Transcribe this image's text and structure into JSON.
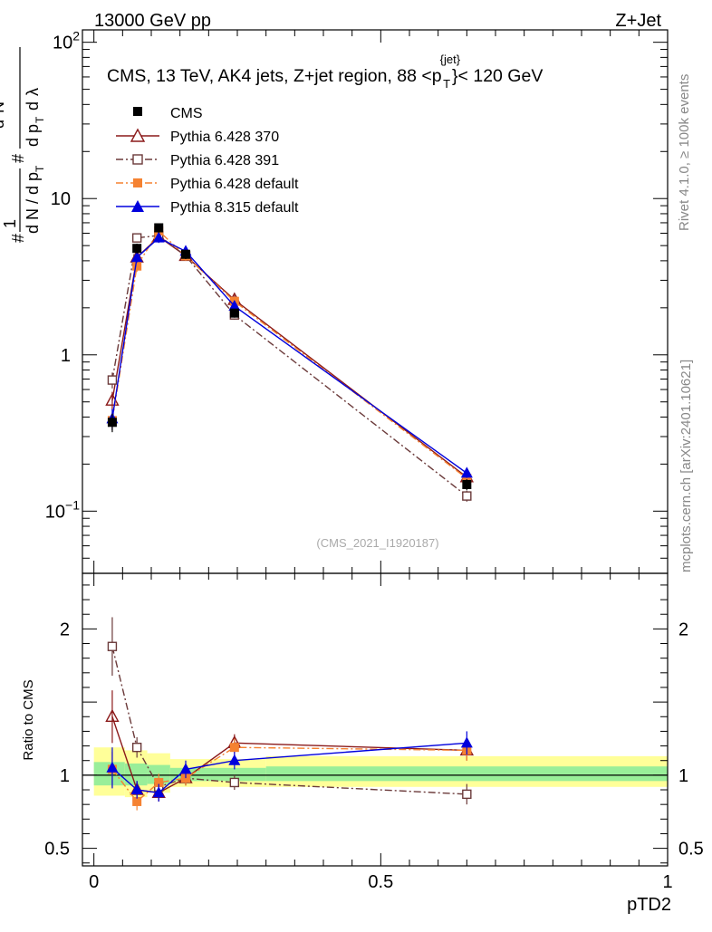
{
  "header": {
    "left": "13000 GeV pp",
    "right": "Z+Jet"
  },
  "side_text": {
    "rivet": "Rivet 4.1.0, ≥ 100k events",
    "mcplots": "mcplots.cern.ch [arXiv:2401.10621]"
  },
  "main_title": {
    "prefix": "CMS, 13 TeV, AK4 jets, Z+jet region, 88 <p",
    "sup": "{jet}",
    "sub": "T",
    "suffix": "}< 120 GeV"
  },
  "analysis_id": "(CMS_2021_I1920187)",
  "chart_data": [
    {
      "type": "line",
      "panel": "main",
      "yscale": "log",
      "ylim": [
        0.04,
        120
      ],
      "xlim": [
        -0.02,
        1.0
      ],
      "ylabel": "1/(dN/dp_T) d²N/(dp_T dλ)",
      "yticks": [
        {
          "v": 0.1,
          "base": "10",
          "exp": "−1"
        },
        {
          "v": 1,
          "base": "1",
          "exp": ""
        },
        {
          "v": 10,
          "base": "10",
          "exp": ""
        },
        {
          "v": 100,
          "base": "10",
          "exp": "2"
        }
      ],
      "series": [
        {
          "name": "CMS",
          "color": "#000000",
          "marker": "square-filled",
          "line": "none",
          "x": [
            0.032,
            0.075,
            0.113,
            0.16,
            0.245,
            0.65
          ],
          "y": [
            0.37,
            4.8,
            6.5,
            4.4,
            1.85,
            0.148
          ],
          "err": [
            0.05,
            0.35,
            0.45,
            0.3,
            0.12,
            0.012
          ]
        },
        {
          "name": "Pythia 6.428 370",
          "color": "#8b1a1a",
          "marker": "triangle-open",
          "line": "solid",
          "x": [
            0.032,
            0.075,
            0.113,
            0.16,
            0.245,
            0.65
          ],
          "y": [
            0.51,
            4.2,
            5.7,
            4.3,
            2.25,
            0.165
          ],
          "err": [
            0.07,
            0.3,
            0.4,
            0.3,
            0.15,
            0.012
          ]
        },
        {
          "name": "Pythia 6.428 391",
          "color": "#6b3a3a",
          "marker": "square-open",
          "line": "dashdot",
          "x": [
            0.032,
            0.075,
            0.113,
            0.16,
            0.245,
            0.65
          ],
          "y": [
            0.69,
            5.6,
            5.8,
            4.3,
            1.8,
            0.125
          ],
          "err": [
            0.08,
            0.35,
            0.4,
            0.3,
            0.12,
            0.01
          ]
        },
        {
          "name": "Pythia 6.428 default",
          "color": "#f58231",
          "marker": "square-filled",
          "line": "dashdot",
          "x": [
            0.032,
            0.075,
            0.113,
            0.16,
            0.245,
            0.65
          ],
          "y": [
            0.38,
            3.7,
            6.2,
            4.3,
            2.2,
            0.162
          ],
          "err": [
            0.05,
            0.3,
            0.4,
            0.3,
            0.15,
            0.012
          ]
        },
        {
          "name": "Pythia 8.315 default",
          "color": "#0000dd",
          "marker": "triangle-filled",
          "line": "solid",
          "x": [
            0.032,
            0.075,
            0.113,
            0.16,
            0.245,
            0.65
          ],
          "y": [
            0.39,
            4.2,
            5.6,
            4.6,
            2.05,
            0.175
          ],
          "err": [
            0.06,
            0.3,
            0.4,
            0.3,
            0.15,
            0.012
          ]
        }
      ]
    },
    {
      "type": "line",
      "panel": "ratio",
      "ylabel": "Ratio to CMS",
      "xlabel": "pTD2",
      "ylim": [
        0.38,
        2.38
      ],
      "xlim": [
        -0.02,
        1.0
      ],
      "yticks": [
        0.5,
        1,
        2
      ],
      "xticks": [
        0,
        0.5,
        1
      ],
      "xtick_labels": [
        "0",
        "0.5",
        "1"
      ],
      "ytick_labels": [
        "0.5",
        "1",
        "2"
      ],
      "bands": [
        {
          "x0": 0.0,
          "x1": 0.054,
          "yellow": [
            0.86,
            1.19
          ],
          "green": [
            0.93,
            1.09
          ]
        },
        {
          "x0": 0.054,
          "x1": 0.093,
          "yellow": [
            0.85,
            1.17
          ],
          "green": [
            0.93,
            1.08
          ]
        },
        {
          "x0": 0.093,
          "x1": 0.133,
          "yellow": [
            0.88,
            1.15
          ],
          "green": [
            0.94,
            1.07
          ]
        },
        {
          "x0": 0.133,
          "x1": 0.3,
          "yellow": [
            0.92,
            1.11
          ],
          "green": [
            0.96,
            1.05
          ]
        },
        {
          "x0": 0.3,
          "x1": 1.0,
          "yellow": [
            0.92,
            1.13
          ],
          "green": [
            0.96,
            1.06
          ]
        }
      ],
      "series": [
        {
          "name": "Pythia 6.428 370",
          "y": [
            1.4,
            0.9,
            0.88,
            0.98,
            1.22,
            1.17
          ],
          "err": [
            0.18,
            0.06,
            0.06,
            0.05,
            0.06,
            0.07
          ]
        },
        {
          "name": "Pythia 6.428 391",
          "y": [
            1.88,
            1.19,
            0.92,
            0.98,
            0.95,
            0.87
          ],
          "err": [
            0.2,
            0.07,
            0.06,
            0.05,
            0.05,
            0.07
          ]
        },
        {
          "name": "Pythia 6.428 default",
          "y": [
            1.04,
            0.82,
            0.95,
            0.98,
            1.19,
            1.17
          ],
          "err": [
            0.12,
            0.06,
            0.06,
            0.05,
            0.06,
            0.07
          ]
        },
        {
          "name": "Pythia 8.315 default",
          "y": [
            1.05,
            0.9,
            0.88,
            1.04,
            1.1,
            1.22
          ],
          "err": [
            0.14,
            0.06,
            0.06,
            0.06,
            0.06,
            0.08
          ]
        }
      ]
    }
  ]
}
